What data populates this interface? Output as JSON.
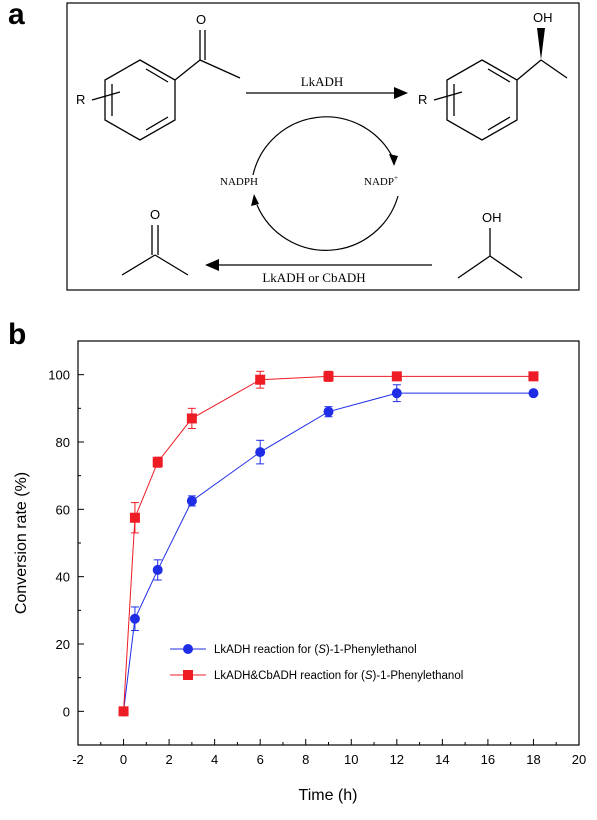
{
  "panel_a": {
    "letter": "a",
    "reaction_top_label": "LkADH",
    "reaction_bottom_label": "LkADH or CbADH",
    "cofactor_left": "NADPH",
    "cofactor_right": "NADP",
    "cofactor_right_sup": "+",
    "substrate_r_label": "R",
    "product_r_label": "R",
    "product_oh": "OH",
    "acetone_o": "O",
    "substrate_o": "O",
    "isopropanol_oh": "OH"
  },
  "panel_b": {
    "letter": "b"
  },
  "chart_data": {
    "type": "line",
    "xlabel": "Time (h)",
    "ylabel": "Conversion rate (%)",
    "xlim": [
      -2,
      20
    ],
    "ylim": [
      -10,
      110
    ],
    "xticks": [
      -2,
      0,
      2,
      4,
      6,
      8,
      10,
      12,
      14,
      16,
      18,
      20
    ],
    "yticks": [
      0,
      20,
      40,
      60,
      80,
      100
    ],
    "grid": false,
    "legend_position": "bottom-right",
    "series": [
      {
        "name": "LkADH reaction for (S)-1-Phenylethanol",
        "legend_prefix": "LkADH reaction for (",
        "legend_italic": "S",
        "legend_suffix": ")-1-Phenylethanol",
        "color": "#1f2ee6",
        "marker": "circle",
        "x": [
          0,
          0.5,
          1.5,
          3,
          6,
          9,
          12,
          18
        ],
        "y": [
          0,
          27.5,
          42,
          62.5,
          77,
          89,
          94.5,
          94.5
        ],
        "err": [
          0,
          3.5,
          3,
          1.5,
          3.5,
          1.5,
          2.5,
          0.5
        ]
      },
      {
        "name": "LkADH&CbADH reaction for (S)-1-Phenylethanol",
        "legend_prefix": "LkADH&CbADH reaction for (",
        "legend_italic": "S",
        "legend_suffix": ")-1-Phenylethanol",
        "color": "#ee1c25",
        "marker": "square",
        "x": [
          0,
          0.5,
          1.5,
          3,
          6,
          9,
          12,
          18
        ],
        "y": [
          0,
          57.5,
          74,
          87,
          98.5,
          99.5,
          99.5,
          99.5
        ],
        "err": [
          0,
          4.5,
          1.5,
          3,
          2.5,
          1.5,
          0.5,
          0.5
        ]
      }
    ]
  }
}
